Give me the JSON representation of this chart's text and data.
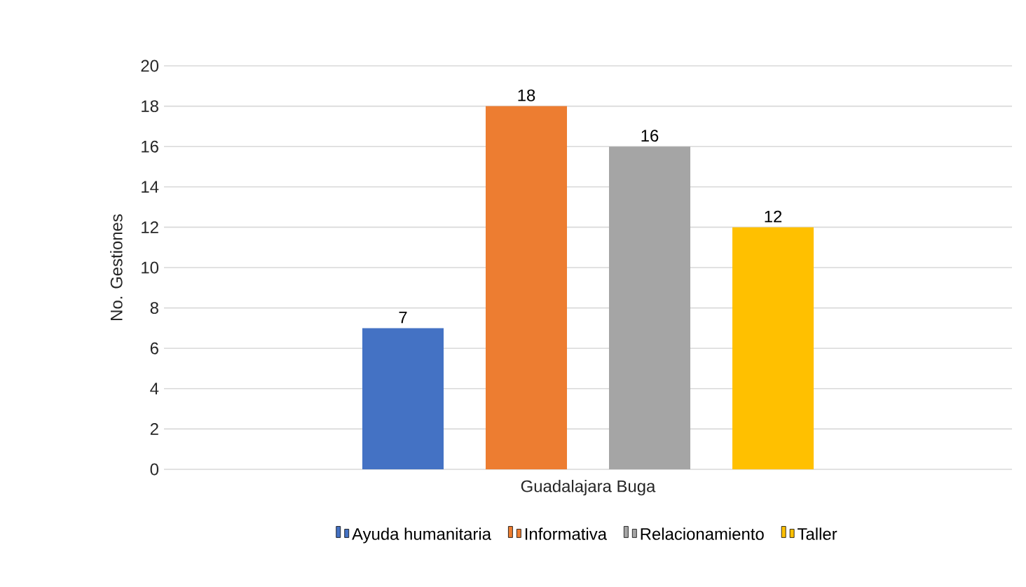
{
  "chart_data": {
    "type": "bar",
    "ylabel": "No. Gestiones",
    "categories": [
      "Guadalajara Buga"
    ],
    "series": [
      {
        "name": "Ayuda humanitaria",
        "color": "#4472c4",
        "values": [
          7
        ]
      },
      {
        "name": "Informativa",
        "color": "#ed7d31",
        "values": [
          18
        ]
      },
      {
        "name": "Relacionamiento",
        "color": "#a5a5a5",
        "values": [
          16
        ]
      },
      {
        "name": "Taller",
        "color": "#ffc000",
        "values": [
          12
        ]
      }
    ],
    "ylim": [
      0,
      20
    ],
    "yticks": [
      0,
      2,
      4,
      6,
      8,
      10,
      12,
      14,
      16,
      18,
      20
    ],
    "grid": "y",
    "legend": "bottom",
    "data_labels": true
  }
}
